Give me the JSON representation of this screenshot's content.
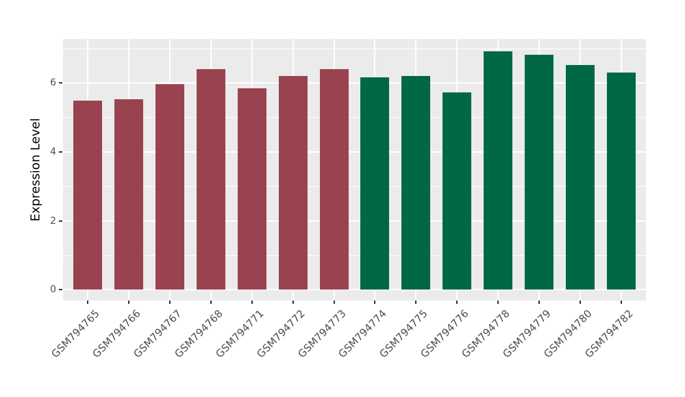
{
  "chart_data": {
    "type": "bar",
    "title": "",
    "xlabel": "",
    "ylabel": "Expression Level",
    "categories": [
      "GSM794765",
      "GSM794766",
      "GSM794767",
      "GSM794768",
      "GSM794771",
      "GSM794772",
      "GSM794773",
      "GSM794774",
      "GSM794775",
      "GSM794776",
      "GSM794778",
      "GSM794779",
      "GSM794780",
      "GSM794782"
    ],
    "values": [
      5.5,
      5.54,
      5.97,
      6.4,
      5.85,
      6.2,
      6.41,
      6.16,
      6.2,
      5.73,
      6.93,
      6.83,
      6.52,
      6.31
    ],
    "bar_colors": [
      "#9A4350",
      "#9A4350",
      "#9A4350",
      "#9A4350",
      "#9A4350",
      "#9A4350",
      "#9A4350",
      "#006847",
      "#006847",
      "#006847",
      "#006847",
      "#006847",
      "#006847",
      "#006847"
    ],
    "group_colors": {
      "left_group": "#9A4350",
      "right_group": "#006847"
    },
    "yticks": [
      0,
      2,
      4,
      6
    ],
    "yticks_minor": [
      1,
      3,
      5,
      7
    ],
    "ylim": [
      -0.31,
      7.28
    ],
    "bar_width_frac": 0.7,
    "category_outer_padding": 0.6,
    "grid": "white major+minor horizontal, white major vertical on gray panel",
    "legend_position": "none",
    "panel_background": "#EBEBEB",
    "grid_color": "#FFFFFF",
    "tick_mark_color": "#333333",
    "axis_text_color": "#4D4D4D",
    "axis_title_color": "#000000",
    "x_label_angle_deg": 45
  }
}
